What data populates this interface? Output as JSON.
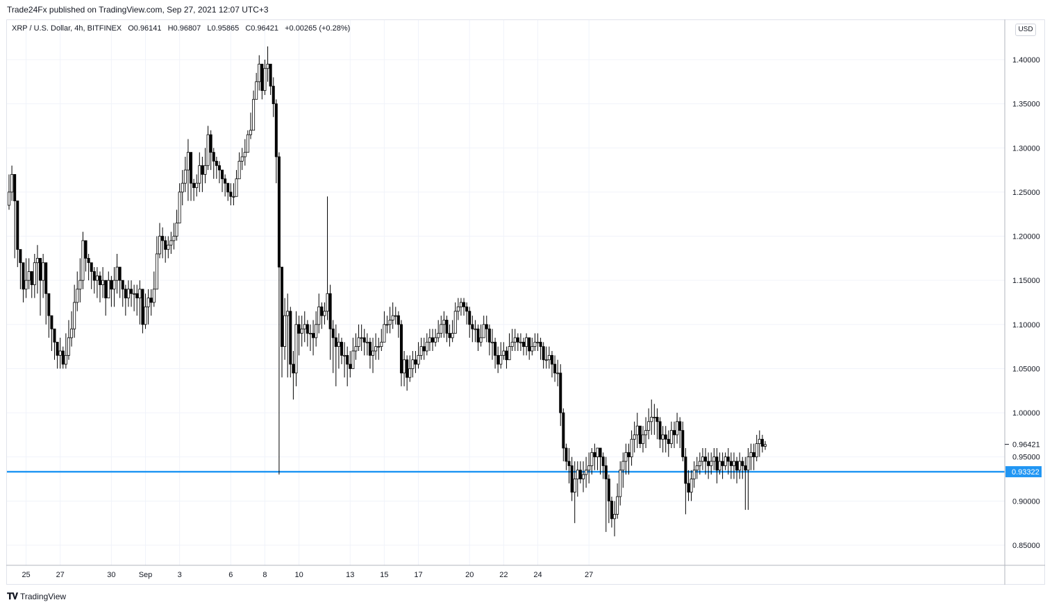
{
  "header": {
    "publish_line": "Trade24Fx published on TradingView.com, Sep 27, 2021 12:07 UTC+3"
  },
  "legend": {
    "symbol": "XRP / U.S. Dollar, 4h, BITFINEX",
    "open_label": "O",
    "open": "0.96141",
    "high_label": "H",
    "high": "0.96807",
    "low_label": "L",
    "low": "0.95865",
    "close_label": "C",
    "close": "0.96421",
    "change": "+0.00265 (+0.28%)"
  },
  "currency": "USD",
  "footer": {
    "brand": "TradingView",
    "logo_icon": "tradingview-logo-icon"
  },
  "colors": {
    "up_body": "#ffffff",
    "down_body": "#000000",
    "wick": "#000000",
    "hline": "#2196f3",
    "grid": "#f0f3fa",
    "axis_text": "#131722"
  },
  "chart_data": {
    "type": "candlestick",
    "timeframe": "4h",
    "x_tick_labels": [
      {
        "label": "25",
        "bar": 6
      },
      {
        "label": "27",
        "bar": 18
      },
      {
        "label": "30",
        "bar": 36
      },
      {
        "label": "Sep",
        "bar": 48
      },
      {
        "label": "3",
        "bar": 60
      },
      {
        "label": "6",
        "bar": 78
      },
      {
        "label": "8",
        "bar": 90
      },
      {
        "label": "10",
        "bar": 102
      },
      {
        "label": "13",
        "bar": 120
      },
      {
        "label": "15",
        "bar": 132
      },
      {
        "label": "17",
        "bar": 144
      },
      {
        "label": "20",
        "bar": 162
      },
      {
        "label": "22",
        "bar": 174
      },
      {
        "label": "24",
        "bar": 186
      },
      {
        "label": "27",
        "bar": 204
      }
    ],
    "y_ticks": [
      "1.40000",
      "1.35000",
      "1.30000",
      "1.25000",
      "1.20000",
      "1.15000",
      "1.10000",
      "1.05000",
      "1.00000",
      "0.95000",
      "0.90000",
      "0.85000"
    ],
    "ylim": [
      0.825,
      1.425
    ],
    "last_price": {
      "label": "0.96421",
      "value": 0.96421
    },
    "horizontal_line": {
      "label": "0.93322",
      "value": 0.93322
    },
    "closes": [
      1.25,
      1.27,
      1.24,
      1.185,
      1.17,
      1.14,
      1.15,
      1.16,
      1.145,
      1.17,
      1.175,
      1.15,
      1.17,
      1.135,
      1.11,
      1.095,
      1.08,
      1.065,
      1.07,
      1.055,
      1.065,
      1.085,
      1.095,
      1.125,
      1.14,
      1.15,
      1.195,
      1.175,
      1.17,
      1.16,
      1.15,
      1.155,
      1.145,
      1.15,
      1.13,
      1.15,
      1.14,
      1.15,
      1.165,
      1.15,
      1.14,
      1.13,
      1.14,
      1.135,
      1.135,
      1.13,
      1.14,
      1.1,
      1.12,
      1.13,
      1.125,
      1.14,
      1.18,
      1.2,
      1.195,
      1.185,
      1.19,
      1.195,
      1.2,
      1.215,
      1.25,
      1.26,
      1.275,
      1.295,
      1.26,
      1.255,
      1.26,
      1.28,
      1.27,
      1.28,
      1.315,
      1.295,
      1.285,
      1.28,
      1.275,
      1.265,
      1.26,
      1.25,
      1.245,
      1.245,
      1.265,
      1.285,
      1.29,
      1.295,
      1.315,
      1.32,
      1.355,
      1.375,
      1.395,
      1.365,
      1.39,
      1.395,
      1.37,
      1.35,
      1.29,
      1.165,
      1.075,
      1.11,
      1.115,
      1.055,
      1.045,
      1.1,
      1.09,
      1.095,
      1.1,
      1.09,
      1.09,
      1.085,
      1.1,
      1.12,
      1.11,
      1.115,
      1.135,
      1.095,
      1.085,
      1.075,
      1.08,
      1.065,
      1.065,
      1.055,
      1.05,
      1.07,
      1.075,
      1.085,
      1.085,
      1.08,
      1.08,
      1.065,
      1.07,
      1.075,
      1.075,
      1.08,
      1.1,
      1.1,
      1.105,
      1.11,
      1.11,
      1.1,
      1.045,
      1.06,
      1.04,
      1.05,
      1.06,
      1.055,
      1.065,
      1.075,
      1.07,
      1.08,
      1.085,
      1.08,
      1.085,
      1.09,
      1.1,
      1.105,
      1.09,
      1.085,
      1.09,
      1.115,
      1.12,
      1.125,
      1.12,
      1.115,
      1.1,
      1.095,
      1.095,
      1.08,
      1.085,
      1.1,
      1.095,
      1.08,
      1.08,
      1.065,
      1.055,
      1.065,
      1.07,
      1.06,
      1.075,
      1.08,
      1.085,
      1.08,
      1.08,
      1.075,
      1.085,
      1.07,
      1.075,
      1.08,
      1.08,
      1.075,
      1.06,
      1.06,
      1.065,
      1.055,
      1.045,
      1.045,
      1.0,
      0.96,
      0.945,
      0.94,
      0.91,
      0.925,
      0.935,
      0.925,
      0.93,
      0.935,
      0.94,
      0.955,
      0.95,
      0.96,
      0.95,
      0.94,
      0.925,
      0.9,
      0.88,
      0.885,
      0.905,
      0.935,
      0.945,
      0.955,
      0.95,
      0.97,
      0.975,
      0.985,
      0.965,
      0.975,
      0.98,
      0.99,
      0.995,
      0.995,
      0.99,
      0.97,
      0.975,
      0.97,
      0.965,
      0.98,
      0.975,
      0.99,
      0.98,
      0.95,
      0.92,
      0.91,
      0.925,
      0.935,
      0.94,
      0.945,
      0.95,
      0.945,
      0.94,
      0.945,
      0.95,
      0.935,
      0.945,
      0.94,
      0.95,
      0.945,
      0.94,
      0.945,
      0.935,
      0.945,
      0.94,
      0.935,
      0.95,
      0.955,
      0.95,
      0.965,
      0.97,
      0.962,
      0.964
    ],
    "highs": [
      1.27,
      1.28,
      1.255,
      1.195,
      1.185,
      1.165,
      1.175,
      1.175,
      1.16,
      1.18,
      1.19,
      1.17,
      1.18,
      1.15,
      1.125,
      1.11,
      1.095,
      1.08,
      1.085,
      1.075,
      1.09,
      1.105,
      1.115,
      1.145,
      1.16,
      1.175,
      1.205,
      1.195,
      1.18,
      1.17,
      1.165,
      1.165,
      1.16,
      1.165,
      1.15,
      1.16,
      1.155,
      1.165,
      1.18,
      1.165,
      1.15,
      1.145,
      1.15,
      1.15,
      1.145,
      1.145,
      1.15,
      1.115,
      1.135,
      1.14,
      1.14,
      1.16,
      1.2,
      1.215,
      1.21,
      1.2,
      1.2,
      1.205,
      1.215,
      1.23,
      1.26,
      1.275,
      1.29,
      1.31,
      1.275,
      1.265,
      1.27,
      1.295,
      1.29,
      1.3,
      1.325,
      1.32,
      1.3,
      1.29,
      1.285,
      1.275,
      1.27,
      1.26,
      1.26,
      1.26,
      1.275,
      1.295,
      1.3,
      1.31,
      1.32,
      1.34,
      1.365,
      1.385,
      1.405,
      1.39,
      1.4,
      1.415,
      1.39,
      1.38,
      1.355,
      1.295,
      1.165,
      1.13,
      1.135,
      1.12,
      1.07,
      1.115,
      1.11,
      1.11,
      1.115,
      1.105,
      1.1,
      1.105,
      1.115,
      1.135,
      1.125,
      1.125,
      1.245,
      1.145,
      1.105,
      1.1,
      1.09,
      1.085,
      1.08,
      1.075,
      1.07,
      1.085,
      1.09,
      1.1,
      1.1,
      1.095,
      1.09,
      1.085,
      1.085,
      1.09,
      1.085,
      1.095,
      1.115,
      1.11,
      1.12,
      1.125,
      1.12,
      1.115,
      1.105,
      1.07,
      1.065,
      1.065,
      1.07,
      1.07,
      1.08,
      1.085,
      1.085,
      1.09,
      1.095,
      1.095,
      1.095,
      1.105,
      1.11,
      1.115,
      1.11,
      1.1,
      1.105,
      1.125,
      1.13,
      1.13,
      1.13,
      1.125,
      1.12,
      1.11,
      1.105,
      1.1,
      1.1,
      1.11,
      1.11,
      1.1,
      1.095,
      1.085,
      1.075,
      1.08,
      1.08,
      1.075,
      1.09,
      1.095,
      1.095,
      1.09,
      1.09,
      1.085,
      1.09,
      1.085,
      1.085,
      1.09,
      1.09,
      1.085,
      1.08,
      1.075,
      1.075,
      1.07,
      1.065,
      1.06,
      1.055,
      1.005,
      0.965,
      0.96,
      0.95,
      0.945,
      0.945,
      0.945,
      0.945,
      0.95,
      0.955,
      0.96,
      0.965,
      0.96,
      0.96,
      0.955,
      0.95,
      0.93,
      0.905,
      0.9,
      0.92,
      0.945,
      0.955,
      0.965,
      0.965,
      0.98,
      0.99,
      1.0,
      0.985,
      0.985,
      0.995,
      1.005,
      1.015,
      1.01,
      1.005,
      0.995,
      0.985,
      0.985,
      0.98,
      0.99,
      0.99,
      1.0,
      0.995,
      0.99,
      0.96,
      0.935,
      0.935,
      0.945,
      0.95,
      0.955,
      0.96,
      0.96,
      0.955,
      0.955,
      0.96,
      0.96,
      0.955,
      0.955,
      0.955,
      0.96,
      0.955,
      0.955,
      0.95,
      0.955,
      0.95,
      0.95,
      0.96,
      0.965,
      0.965,
      0.975,
      0.98,
      0.975,
      0.968
    ],
    "lows": [
      1.23,
      1.24,
      1.175,
      1.165,
      1.14,
      1.125,
      1.13,
      1.14,
      1.13,
      1.13,
      1.135,
      1.11,
      1.13,
      1.1,
      1.085,
      1.07,
      1.06,
      1.05,
      1.05,
      1.05,
      1.05,
      1.06,
      1.075,
      1.085,
      1.115,
      1.125,
      1.14,
      1.16,
      1.15,
      1.14,
      1.135,
      1.13,
      1.125,
      1.13,
      1.11,
      1.13,
      1.12,
      1.12,
      1.135,
      1.13,
      1.12,
      1.11,
      1.12,
      1.12,
      1.115,
      1.11,
      1.1,
      1.09,
      1.095,
      1.1,
      1.11,
      1.12,
      1.15,
      1.175,
      1.175,
      1.17,
      1.175,
      1.18,
      1.185,
      1.195,
      1.225,
      1.235,
      1.25,
      1.24,
      1.24,
      1.24,
      1.245,
      1.25,
      1.25,
      1.26,
      1.275,
      1.275,
      1.265,
      1.265,
      1.26,
      1.25,
      1.245,
      1.24,
      1.235,
      1.235,
      1.245,
      1.265,
      1.275,
      1.28,
      1.295,
      1.31,
      1.32,
      1.355,
      1.365,
      1.355,
      1.36,
      1.375,
      1.36,
      1.335,
      1.26,
      0.93,
      1.04,
      1.06,
      1.04,
      1.04,
      1.015,
      1.03,
      1.065,
      1.075,
      1.08,
      1.075,
      1.07,
      1.065,
      1.075,
      1.09,
      1.095,
      1.1,
      1.105,
      1.06,
      1.045,
      1.03,
      1.05,
      1.055,
      1.04,
      1.03,
      1.04,
      1.055,
      1.06,
      1.07,
      1.07,
      1.065,
      1.065,
      1.05,
      1.045,
      1.06,
      1.06,
      1.07,
      1.08,
      1.09,
      1.09,
      1.095,
      1.1,
      1.085,
      1.03,
      1.03,
      1.025,
      1.035,
      1.04,
      1.045,
      1.05,
      1.06,
      1.06,
      1.065,
      1.07,
      1.07,
      1.075,
      1.08,
      1.085,
      1.085,
      1.08,
      1.075,
      1.08,
      1.09,
      1.105,
      1.11,
      1.11,
      1.1,
      1.085,
      1.08,
      1.08,
      1.07,
      1.075,
      1.085,
      1.08,
      1.065,
      1.06,
      1.05,
      1.045,
      1.05,
      1.06,
      1.05,
      1.06,
      1.07,
      1.07,
      1.07,
      1.07,
      1.065,
      1.065,
      1.06,
      1.065,
      1.07,
      1.07,
      1.06,
      1.05,
      1.05,
      1.05,
      1.04,
      1.035,
      1.03,
      0.985,
      0.945,
      0.935,
      0.92,
      0.9,
      0.875,
      0.905,
      0.92,
      0.91,
      0.915,
      0.92,
      0.93,
      0.935,
      0.935,
      0.93,
      0.925,
      0.865,
      0.875,
      0.87,
      0.86,
      0.88,
      0.895,
      0.915,
      0.93,
      0.93,
      0.94,
      0.955,
      0.96,
      0.96,
      0.955,
      0.96,
      0.97,
      0.975,
      0.975,
      0.97,
      0.96,
      0.955,
      0.955,
      0.95,
      0.96,
      0.96,
      0.965,
      0.96,
      0.945,
      0.885,
      0.9,
      0.9,
      0.915,
      0.925,
      0.93,
      0.935,
      0.93,
      0.925,
      0.93,
      0.935,
      0.92,
      0.93,
      0.925,
      0.935,
      0.93,
      0.925,
      0.925,
      0.92,
      0.925,
      0.925,
      0.89,
      0.89,
      0.935,
      0.935,
      0.945,
      0.95,
      0.955,
      0.958
    ]
  }
}
